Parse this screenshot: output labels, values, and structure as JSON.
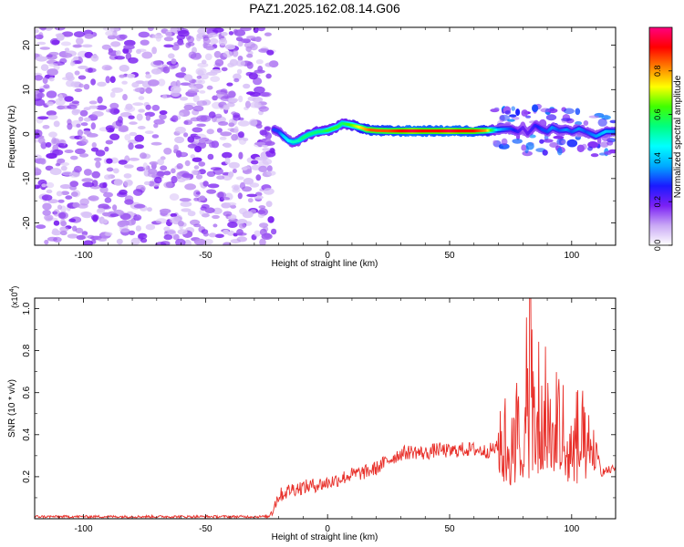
{
  "title": "PAZ1.2025.162.08.14.G06",
  "chart_data": [
    {
      "type": "heatmap",
      "xlabel": "Height of straight line (km)",
      "ylabel": "Frequency (Hz)",
      "xlim": [
        -120,
        118
      ],
      "ylim": [
        -25,
        24
      ],
      "xticks": [
        -100,
        -50,
        0,
        50,
        100
      ],
      "yticks": [
        -20,
        -10,
        0,
        10,
        20
      ],
      "colorbar": {
        "label": "Normalized spectral amplitude",
        "range": [
          0,
          1
        ],
        "ticks": [
          0.0,
          0.2,
          0.4,
          0.6,
          0.8
        ],
        "tick_labels": [
          "0.0",
          "0.2",
          "0.4",
          "0.6",
          "0.8"
        ],
        "colormap": [
          "#ffffff",
          "#c9a8f5",
          "#7b20f5",
          "#1a1aff",
          "#00aaff",
          "#00ffff",
          "#00ff80",
          "#40ff00",
          "#ffff00",
          "#ff8000",
          "#ff0000",
          "#ff0080"
        ]
      },
      "noise_region_x": [
        -120,
        -22
      ],
      "signal_track": {
        "x": [
          -22,
          -20,
          -18,
          -16,
          -14,
          -12,
          -10,
          -8,
          -6,
          -4,
          -2,
          0,
          2,
          4,
          6,
          8,
          10,
          12,
          14,
          16,
          18,
          20,
          25,
          30,
          35,
          40,
          45,
          50,
          55,
          60,
          65,
          70,
          72,
          75,
          78,
          80,
          82,
          85,
          88,
          90,
          92,
          95,
          98,
          100,
          103,
          106,
          110,
          114,
          118
        ],
        "y": [
          1.0,
          0.5,
          -0.5,
          -1.5,
          -1.8,
          -1.5,
          -0.8,
          -0.2,
          0.2,
          0.5,
          0.6,
          0.8,
          1.2,
          1.6,
          2.4,
          2.2,
          2.0,
          1.7,
          1.4,
          1.0,
          0.9,
          0.8,
          0.7,
          0.7,
          0.7,
          0.7,
          0.7,
          0.7,
          0.7,
          0.7,
          0.8,
          1.0,
          1.1,
          1.2,
          0.5,
          1.5,
          0.0,
          2.0,
          1.0,
          0.5,
          1.5,
          0.8,
          1.0,
          0.5,
          1.2,
          0.5,
          -0.5,
          0.6,
          0.6
        ],
        "amplitude": [
          0.3,
          0.3,
          0.4,
          0.45,
          0.5,
          0.5,
          0.55,
          0.55,
          0.55,
          0.55,
          0.55,
          0.6,
          0.6,
          0.6,
          0.55,
          0.6,
          0.65,
          0.7,
          0.75,
          0.8,
          0.85,
          0.85,
          0.85,
          0.9,
          0.95,
          0.9,
          0.9,
          0.95,
          0.9,
          0.9,
          0.8,
          0.4,
          0.35,
          0.3,
          0.25,
          0.2,
          0.2,
          0.25,
          0.3,
          0.3,
          0.35,
          0.3,
          0.35,
          0.3,
          0.35,
          0.3,
          0.35,
          0.4,
          0.35
        ]
      }
    },
    {
      "type": "line",
      "xlabel": "Height of straight line (km)",
      "ylabel": "SNR (10 * v/v)",
      "y_multiplier": "(x10",
      "y_exponent": "4",
      "y_multiplier_close": ")",
      "xlim": [
        -120,
        118
      ],
      "ylim": [
        0,
        1.05
      ],
      "xticks": [
        -100,
        -50,
        0,
        50,
        100
      ],
      "yticks": [
        0.2,
        0.4,
        0.6,
        0.8,
        1.0
      ],
      "ytick_labels": [
        "0.2",
        "0.4",
        "0.6",
        "0.8",
        "1.0"
      ],
      "series": [
        {
          "color": "#e8302a",
          "x": [
            -120,
            -100,
            -80,
            -60,
            -40,
            -24,
            -22,
            -20,
            -18,
            -15,
            -10,
            -5,
            0,
            5,
            10,
            15,
            20,
            25,
            30,
            35,
            40,
            45,
            50,
            55,
            60,
            65,
            70,
            72,
            74,
            76,
            78,
            80,
            82,
            83,
            85,
            87,
            88,
            90,
            92,
            95,
            98,
            100,
            103,
            105,
            108,
            110,
            112,
            115,
            118
          ],
          "y": [
            0.01,
            0.01,
            0.01,
            0.01,
            0.01,
            0.01,
            0.06,
            0.11,
            0.12,
            0.14,
            0.15,
            0.16,
            0.17,
            0.19,
            0.21,
            0.22,
            0.24,
            0.28,
            0.31,
            0.32,
            0.31,
            0.33,
            0.32,
            0.33,
            0.33,
            0.32,
            0.34,
            0.3,
            0.45,
            0.2,
            0.6,
            0.15,
            0.8,
            1.05,
            0.4,
            0.9,
            0.25,
            0.88,
            0.3,
            0.7,
            0.2,
            0.35,
            0.4,
            0.3,
            0.2,
            0.35,
            0.22,
            0.23,
            0.24
          ]
        }
      ]
    }
  ]
}
